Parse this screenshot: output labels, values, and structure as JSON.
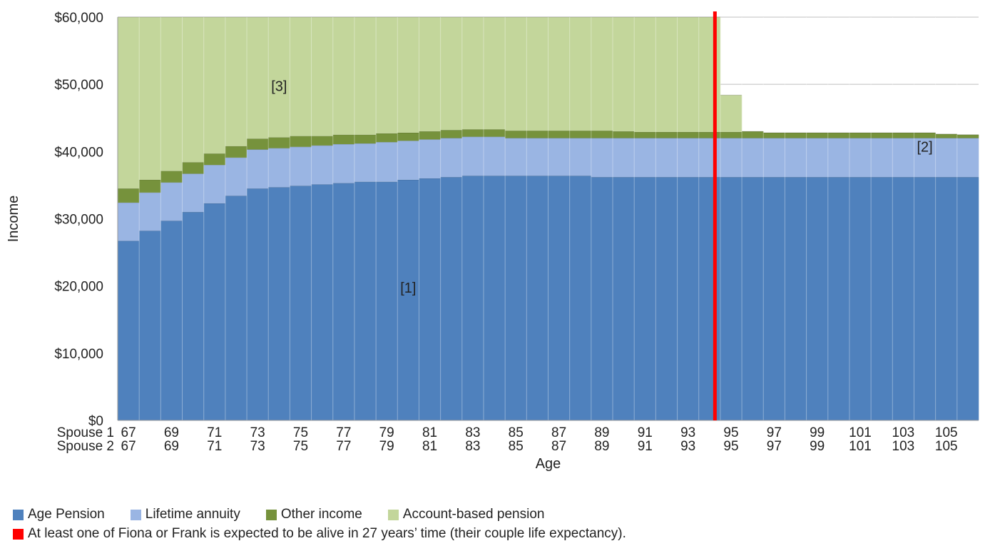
{
  "chart_data": {
    "type": "area",
    "stacked": true,
    "title": "",
    "ylabel": "Income",
    "xlabel": "Age",
    "ylim": [
      0,
      60000
    ],
    "yticks": [
      0,
      10000,
      20000,
      30000,
      40000,
      50000,
      60000
    ],
    "ytick_labels": [
      "$0",
      "$10,000",
      "$20,000",
      "$30,000",
      "$40,000",
      "$50,000",
      "$60,000"
    ],
    "gridlines": true,
    "x": [
      67,
      68,
      69,
      70,
      71,
      72,
      73,
      74,
      75,
      76,
      77,
      78,
      79,
      80,
      81,
      82,
      83,
      84,
      85,
      86,
      87,
      88,
      89,
      90,
      91,
      92,
      93,
      94,
      95,
      96,
      97,
      98,
      99,
      100,
      101,
      102,
      103,
      104,
      105,
      106
    ],
    "x_rows": [
      {
        "label": "Spouse 1",
        "ticks": [
          "67",
          "69",
          "71",
          "73",
          "75",
          "77",
          "79",
          "81",
          "83",
          "85",
          "87",
          "89",
          "91",
          "93",
          "95",
          "97",
          "99",
          "101",
          "103",
          "105"
        ]
      },
      {
        "label": "Spouse 2",
        "ticks": [
          "67",
          "69",
          "71",
          "73",
          "75",
          "77",
          "79",
          "81",
          "83",
          "85",
          "87",
          "89",
          "91",
          "93",
          "95",
          "97",
          "99",
          "101",
          "103",
          "105"
        ]
      }
    ],
    "series": [
      {
        "name": "Age Pension",
        "color": "#4f81bd",
        "values": [
          26700,
          28200,
          29700,
          31000,
          32300,
          33400,
          34500,
          34700,
          34900,
          35100,
          35300,
          35500,
          35500,
          35800,
          36000,
          36200,
          36400,
          36400,
          36400,
          36400,
          36400,
          36400,
          36200,
          36200,
          36200,
          36200,
          36200,
          36200,
          36200,
          36200,
          36200,
          36200,
          36200,
          36200,
          36200,
          36200,
          36200,
          36200,
          36200,
          36200
        ]
      },
      {
        "name": "Lifetime annuity",
        "color": "#9ab5e3",
        "values": [
          5700,
          5700,
          5700,
          5700,
          5700,
          5700,
          5800,
          5800,
          5800,
          5800,
          5800,
          5700,
          5900,
          5800,
          5800,
          5800,
          5800,
          5800,
          5600,
          5600,
          5600,
          5600,
          5800,
          5800,
          5800,
          5800,
          5800,
          5800,
          5800,
          5800,
          5800,
          5800,
          5800,
          5800,
          5800,
          5800,
          5800,
          5800,
          5800,
          5800
        ]
      },
      {
        "name": "Other income",
        "color": "#76923c",
        "values": [
          2100,
          1900,
          1700,
          1700,
          1700,
          1700,
          1600,
          1600,
          1600,
          1400,
          1400,
          1300,
          1300,
          1200,
          1200,
          1200,
          1100,
          1100,
          1100,
          1100,
          1100,
          1100,
          1100,
          1000,
          900,
          900,
          900,
          900,
          900,
          1000,
          800,
          800,
          800,
          800,
          800,
          800,
          800,
          800,
          600,
          500
        ]
      },
      {
        "name": "Account-based pension",
        "color": "#c3d69b",
        "values": [
          25500,
          24200,
          22900,
          21600,
          20300,
          19200,
          18100,
          17900,
          17700,
          17700,
          17500,
          17500,
          17300,
          17200,
          17000,
          16800,
          16700,
          16700,
          16900,
          16900,
          16900,
          16900,
          16900,
          17000,
          17100,
          17100,
          17100,
          17100,
          5500,
          0,
          0,
          0,
          0,
          0,
          0,
          0,
          0,
          0,
          0,
          0
        ]
      }
    ],
    "annotations": [
      {
        "text": "[3]",
        "x": 74,
        "y": 49000
      },
      {
        "text": "[1]",
        "x": 80,
        "y": 19000
      },
      {
        "text": "[2]",
        "x": 104,
        "y": 40000
      }
    ],
    "reference_line": {
      "x_index": 27.75,
      "color": "#ff0000"
    }
  },
  "legend": {
    "items": [
      {
        "label": "Age Pension",
        "color": "#4f81bd"
      },
      {
        "label": "Lifetime annuity",
        "color": "#9ab5e3"
      },
      {
        "label": "Other income",
        "color": "#76923c"
      },
      {
        "label": "Account-based pension",
        "color": "#c3d69b"
      }
    ],
    "reference": {
      "label": "At least one of Fiona or Frank is expected to be alive in 27 years’ time (their couple life expectancy).",
      "color": "#ff0000"
    }
  }
}
